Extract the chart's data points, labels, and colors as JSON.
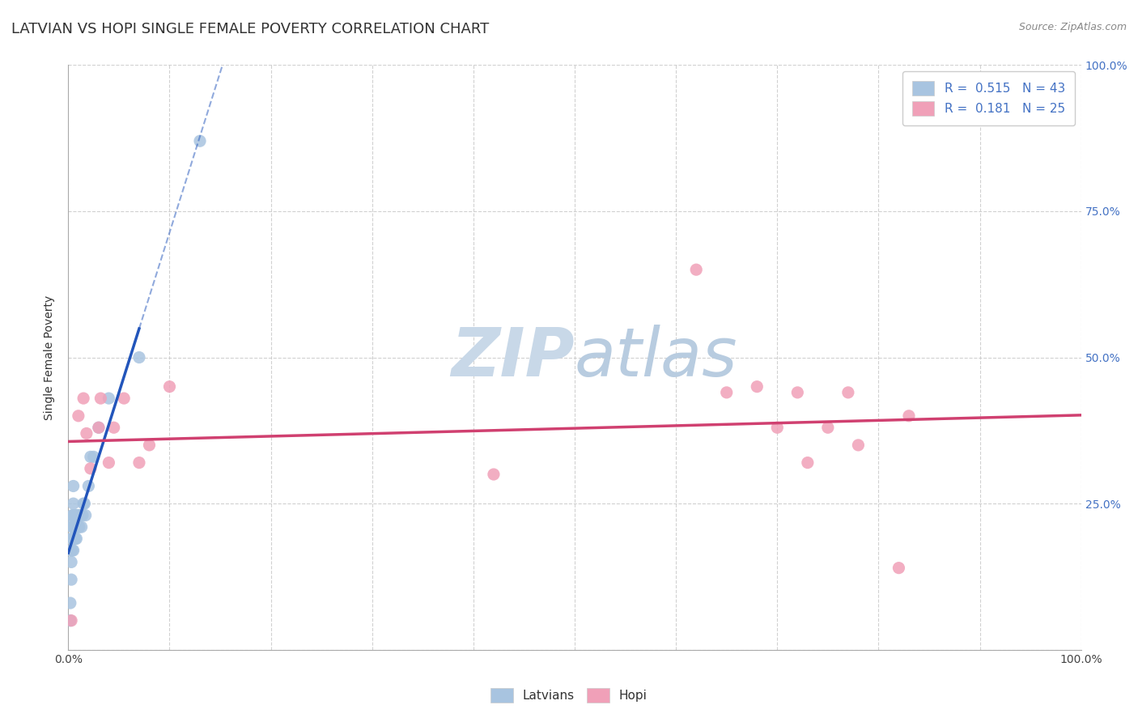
{
  "title": "LATVIAN VS HOPI SINGLE FEMALE POVERTY CORRELATION CHART",
  "source_text": "Source: ZipAtlas.com",
  "ylabel": "Single Female Poverty",
  "xlim": [
    0.0,
    1.0
  ],
  "ylim": [
    0.0,
    1.0
  ],
  "latvian_R": 0.515,
  "latvian_N": 43,
  "hopi_R": 0.181,
  "hopi_N": 25,
  "latvian_color": "#a8c4e0",
  "latvian_line_color": "#2255bb",
  "hopi_color": "#f0a0b8",
  "hopi_line_color": "#d04070",
  "grid_color": "#cccccc",
  "watermark_color": "#c8d8e8",
  "latvian_x": [
    0.002,
    0.002,
    0.003,
    0.003,
    0.003,
    0.003,
    0.003,
    0.004,
    0.004,
    0.004,
    0.004,
    0.005,
    0.005,
    0.005,
    0.005,
    0.005,
    0.005,
    0.006,
    0.006,
    0.006,
    0.007,
    0.007,
    0.008,
    0.008,
    0.008,
    0.009,
    0.009,
    0.01,
    0.01,
    0.011,
    0.012,
    0.013,
    0.014,
    0.015,
    0.016,
    0.017,
    0.02,
    0.022,
    0.025,
    0.03,
    0.04,
    0.07,
    0.13
  ],
  "latvian_y": [
    0.05,
    0.08,
    0.12,
    0.15,
    0.17,
    0.19,
    0.22,
    0.17,
    0.19,
    0.21,
    0.23,
    0.17,
    0.19,
    0.21,
    0.23,
    0.25,
    0.28,
    0.19,
    0.21,
    0.23,
    0.19,
    0.21,
    0.19,
    0.21,
    0.23,
    0.21,
    0.23,
    0.21,
    0.23,
    0.21,
    0.23,
    0.21,
    0.23,
    0.25,
    0.25,
    0.23,
    0.28,
    0.33,
    0.33,
    0.38,
    0.43,
    0.5,
    0.87
  ],
  "hopi_x": [
    0.003,
    0.01,
    0.015,
    0.018,
    0.022,
    0.03,
    0.032,
    0.04,
    0.045,
    0.055,
    0.07,
    0.08,
    0.1,
    0.42,
    0.62,
    0.65,
    0.68,
    0.7,
    0.72,
    0.73,
    0.75,
    0.77,
    0.78,
    0.82,
    0.83
  ],
  "hopi_y": [
    0.05,
    0.4,
    0.43,
    0.37,
    0.31,
    0.38,
    0.43,
    0.32,
    0.38,
    0.43,
    0.32,
    0.35,
    0.45,
    0.3,
    0.65,
    0.44,
    0.45,
    0.38,
    0.44,
    0.32,
    0.38,
    0.44,
    0.35,
    0.14,
    0.4
  ],
  "background_color": "#ffffff",
  "title_fontsize": 13,
  "axis_label_fontsize": 10,
  "tick_fontsize": 10,
  "legend_fontsize": 11,
  "right_tick_color": "#4472c4",
  "watermark_fontsize": 60
}
